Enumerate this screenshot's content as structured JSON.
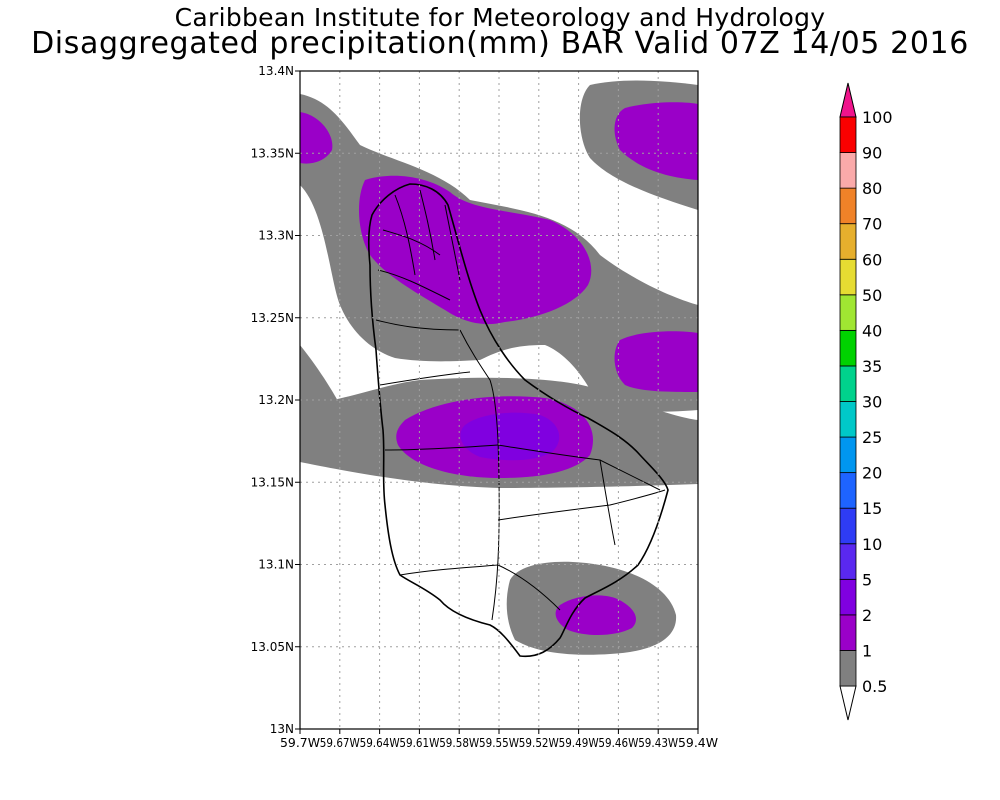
{
  "header": {
    "line1": "Caribbean Institute for Meteorology and Hydrology",
    "line2": "Disaggregated precipitation(mm) BAR Valid 07Z 14/05 2016"
  },
  "map": {
    "lon_range": [
      -59.7,
      -59.4
    ],
    "lat_range": [
      13.0,
      13.4
    ],
    "grid": "dotted",
    "lat_ticks": [
      {
        "value": 13.4,
        "label": "13.4N"
      },
      {
        "value": 13.35,
        "label": "13.35N"
      },
      {
        "value": 13.3,
        "label": "13.3N"
      },
      {
        "value": 13.25,
        "label": "13.25N"
      },
      {
        "value": 13.2,
        "label": "13.2N"
      },
      {
        "value": 13.15,
        "label": "13.15N"
      },
      {
        "value": 13.1,
        "label": "13.1N"
      },
      {
        "value": 13.05,
        "label": "13.05N"
      },
      {
        "value": 13.0,
        "label": "13N"
      }
    ],
    "lon_ticks": [
      {
        "value": -59.7,
        "label": "59.7W"
      },
      {
        "value": -59.67,
        "label": "59.67W"
      },
      {
        "value": -59.64,
        "label": "59.64W"
      },
      {
        "value": -59.61,
        "label": "59.61W"
      },
      {
        "value": -59.58,
        "label": "59.58W"
      },
      {
        "value": -59.55,
        "label": "59.55W"
      },
      {
        "value": -59.52,
        "label": "59.52W"
      },
      {
        "value": -59.49,
        "label": "59.49W"
      },
      {
        "value": -59.46,
        "label": "59.46W"
      },
      {
        "value": -59.43,
        "label": "59.43W"
      },
      {
        "value": -59.4,
        "label": "59.4W"
      }
    ]
  },
  "legend": {
    "levels": [
      {
        "label": "0.5",
        "color": "#808080"
      },
      {
        "label": "1",
        "color": "#9a00c8"
      },
      {
        "label": "2",
        "color": "#8000e0"
      },
      {
        "label": "5",
        "color": "#5a28f0"
      },
      {
        "label": "10",
        "color": "#2e3cf5"
      },
      {
        "label": "15",
        "color": "#1e64ff"
      },
      {
        "label": "20",
        "color": "#0096f0"
      },
      {
        "label": "25",
        "color": "#00c8c8"
      },
      {
        "label": "30",
        "color": "#00d28c"
      },
      {
        "label": "35",
        "color": "#00d200"
      },
      {
        "label": "40",
        "color": "#a0e632"
      },
      {
        "label": "50",
        "color": "#e6dc32"
      },
      {
        "label": "60",
        "color": "#e6af2d"
      },
      {
        "label": "70",
        "color": "#f08228"
      },
      {
        "label": "80",
        "color": "#faaaaa"
      },
      {
        "label": "90",
        "color": "#fa0000"
      },
      {
        "label": "100",
        "color": "#f03c3c"
      }
    ],
    "below_color": "#ffffff",
    "above_color": "#f0148c"
  }
}
